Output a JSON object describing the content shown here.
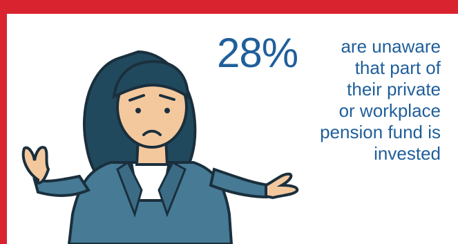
{
  "stat": {
    "percent": "28%",
    "lines": [
      "are unaware",
      "that part of",
      "their private",
      "or workplace",
      "pension fund is",
      "invested"
    ]
  },
  "colors": {
    "frame": "#d9242f",
    "text": "#1f5f9a",
    "hair": "#21495d",
    "jacket": "#467a95",
    "skin": "#f4c89d"
  },
  "illustration": {
    "subject": "confused-woman-shrugging-icon"
  }
}
